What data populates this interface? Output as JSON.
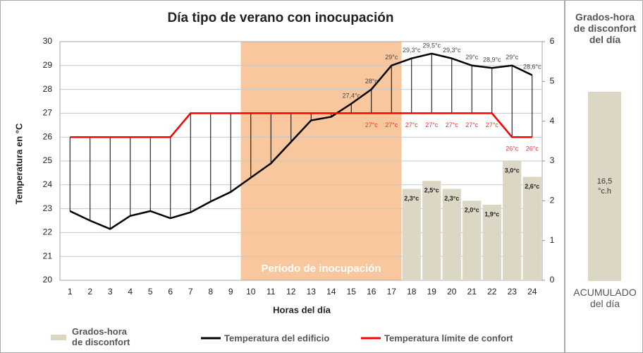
{
  "chart_data": [
    {
      "type": "line",
      "title": "Día tipo de verano con inocupación",
      "x_label": "Horas del día",
      "y_label": "Temperatura en °C",
      "categories": [
        1,
        2,
        3,
        4,
        5,
        6,
        7,
        8,
        9,
        10,
        11,
        12,
        13,
        14,
        15,
        16,
        17,
        18,
        19,
        20,
        21,
        22,
        23,
        24
      ],
      "ylim": [
        20,
        30
      ],
      "yticks": [
        20,
        21,
        22,
        23,
        24,
        25,
        26,
        27,
        28,
        29,
        30
      ],
      "y2lim": [
        0,
        6
      ],
      "y2ticks": [
        0,
        1,
        2,
        3,
        4,
        5,
        6
      ],
      "grid": true,
      "shaded_period": {
        "label": "Período de inocupación",
        "from": 10,
        "to": 17,
        "color": "#f8c79e"
      },
      "series": [
        {
          "name": "Temperatura del edificio",
          "color": "#000000",
          "values": [
            22.9,
            22.5,
            22.15,
            22.7,
            22.9,
            22.6,
            22.85,
            23.3,
            23.7,
            24.3,
            24.9,
            25.8,
            26.7,
            26.85,
            27.4,
            28,
            29,
            29.3,
            29.5,
            29.3,
            29,
            28.9,
            29,
            28.6
          ],
          "value_labels": [
            null,
            null,
            null,
            null,
            null,
            null,
            null,
            null,
            null,
            null,
            null,
            null,
            null,
            null,
            "27,4°c",
            "28°c",
            "29°c",
            "29,3°c",
            "29,5°c",
            "29,3°c",
            "29°c",
            "28,9°c",
            "29°c",
            "28,6°c"
          ]
        },
        {
          "name": "Temperatura límite de confort",
          "color": "#ff0000",
          "values": [
            26,
            26,
            26,
            26,
            26,
            26,
            27,
            27,
            27,
            27,
            27,
            27,
            27,
            27,
            27,
            27,
            27,
            27,
            27,
            27,
            27,
            27,
            26,
            26
          ],
          "value_labels": [
            null,
            null,
            null,
            null,
            null,
            null,
            null,
            null,
            null,
            null,
            null,
            null,
            null,
            null,
            null,
            "27°c",
            "27°c",
            "27°c",
            "27°c",
            "27°c",
            "27°c",
            "27°c",
            "26°c",
            "26°c"
          ]
        },
        {
          "name": "Grados-hora de disconfort",
          "color": "#dcd6c4",
          "axis": "y2",
          "type": "bar",
          "values": [
            null,
            null,
            null,
            null,
            null,
            null,
            null,
            null,
            null,
            null,
            null,
            null,
            null,
            null,
            null,
            null,
            null,
            2.3,
            2.5,
            2.3,
            2.0,
            1.9,
            3.0,
            2.6
          ],
          "value_labels": [
            null,
            null,
            null,
            null,
            null,
            null,
            null,
            null,
            null,
            null,
            null,
            null,
            null,
            null,
            null,
            null,
            null,
            "2,3°c",
            "2,5°c",
            "2,3°c",
            "2,0°c",
            "1,9°c",
            "3,0°c",
            "2,6°c"
          ]
        }
      ]
    },
    {
      "type": "bar",
      "title": "Grados-hora de disconfort del día",
      "categories": [
        "ACUMULADO del día"
      ],
      "values": [
        16.5
      ],
      "value_labels": [
        "16,5 °c.h"
      ],
      "color": "#dcd6c4",
      "ylim": [
        0,
        20
      ]
    }
  ]
}
